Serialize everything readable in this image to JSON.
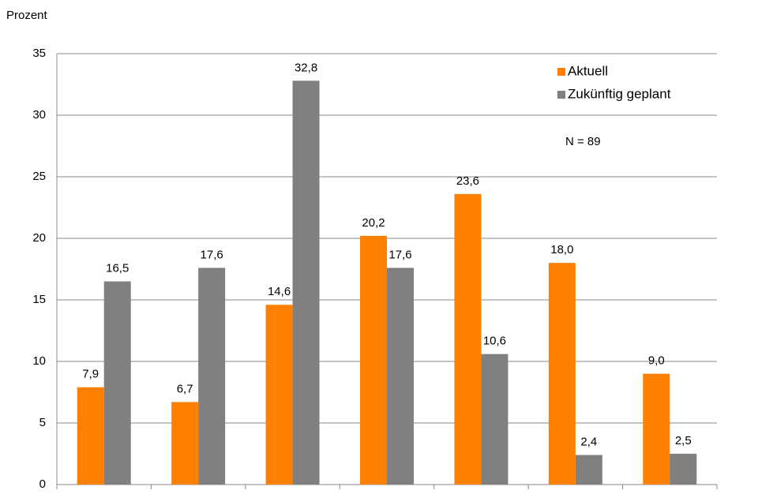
{
  "chart_data": {
    "type": "bar",
    "y_label": "Prozent",
    "annotation": "N = 89",
    "categories": [
      null,
      null,
      null,
      null,
      null,
      null,
      null
    ],
    "series": [
      {
        "name": "Aktuell",
        "color": "#ff7f00",
        "values": [
          7.9,
          6.7,
          14.6,
          20.2,
          23.6,
          18.0,
          9.0
        ],
        "value_labels": [
          "7,9",
          "6,7",
          "14,6",
          "20,2",
          "23,6",
          "18,0",
          "9,0"
        ]
      },
      {
        "name": "Zukünftig geplant",
        "color": "#808080",
        "values": [
          16.5,
          17.6,
          32.8,
          17.6,
          10.6,
          2.4,
          2.5
        ],
        "value_labels": [
          "16,5",
          "17,6",
          "32,8",
          "17,6",
          "10,6",
          "2,4",
          "2,5"
        ]
      }
    ],
    "ylim": [
      0,
      35
    ],
    "yticks": [
      0,
      5,
      10,
      15,
      20,
      25,
      30,
      35
    ],
    "grid": true,
    "legend": "top-right"
  }
}
